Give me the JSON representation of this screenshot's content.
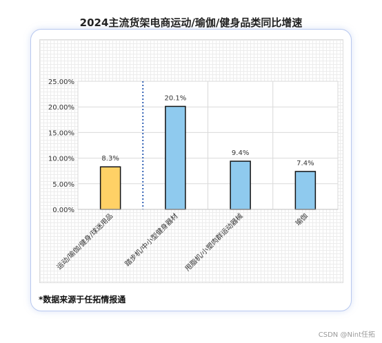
{
  "chart_data": {
    "type": "bar",
    "title": "2024主流货架电商运动/瑜伽/健身品类同比增速",
    "categories": [
      "运动/瑜伽/健身/球迷用品",
      "踏步机/中小型健身器材",
      "甩脂机/小塑肉群运动器械",
      "瑜伽"
    ],
    "values": [
      8.3,
      20.1,
      9.4,
      7.4
    ],
    "data_labels": [
      "8.3%",
      "20.1%",
      "9.4%",
      "7.4%"
    ],
    "yticks": [
      "0.00%",
      "5.00%",
      "10.00%",
      "15.00%",
      "20.00%",
      "25.00%"
    ],
    "ylim": [
      0,
      25
    ],
    "bar_colors": [
      "#ffd166",
      "#8fcaee",
      "#8fcaee",
      "#8fcaee"
    ],
    "grid": true,
    "divider_after_category": 1
  },
  "footnote": "*数据来源于任拓情报通",
  "watermark": "CSDN @Nint任拓"
}
